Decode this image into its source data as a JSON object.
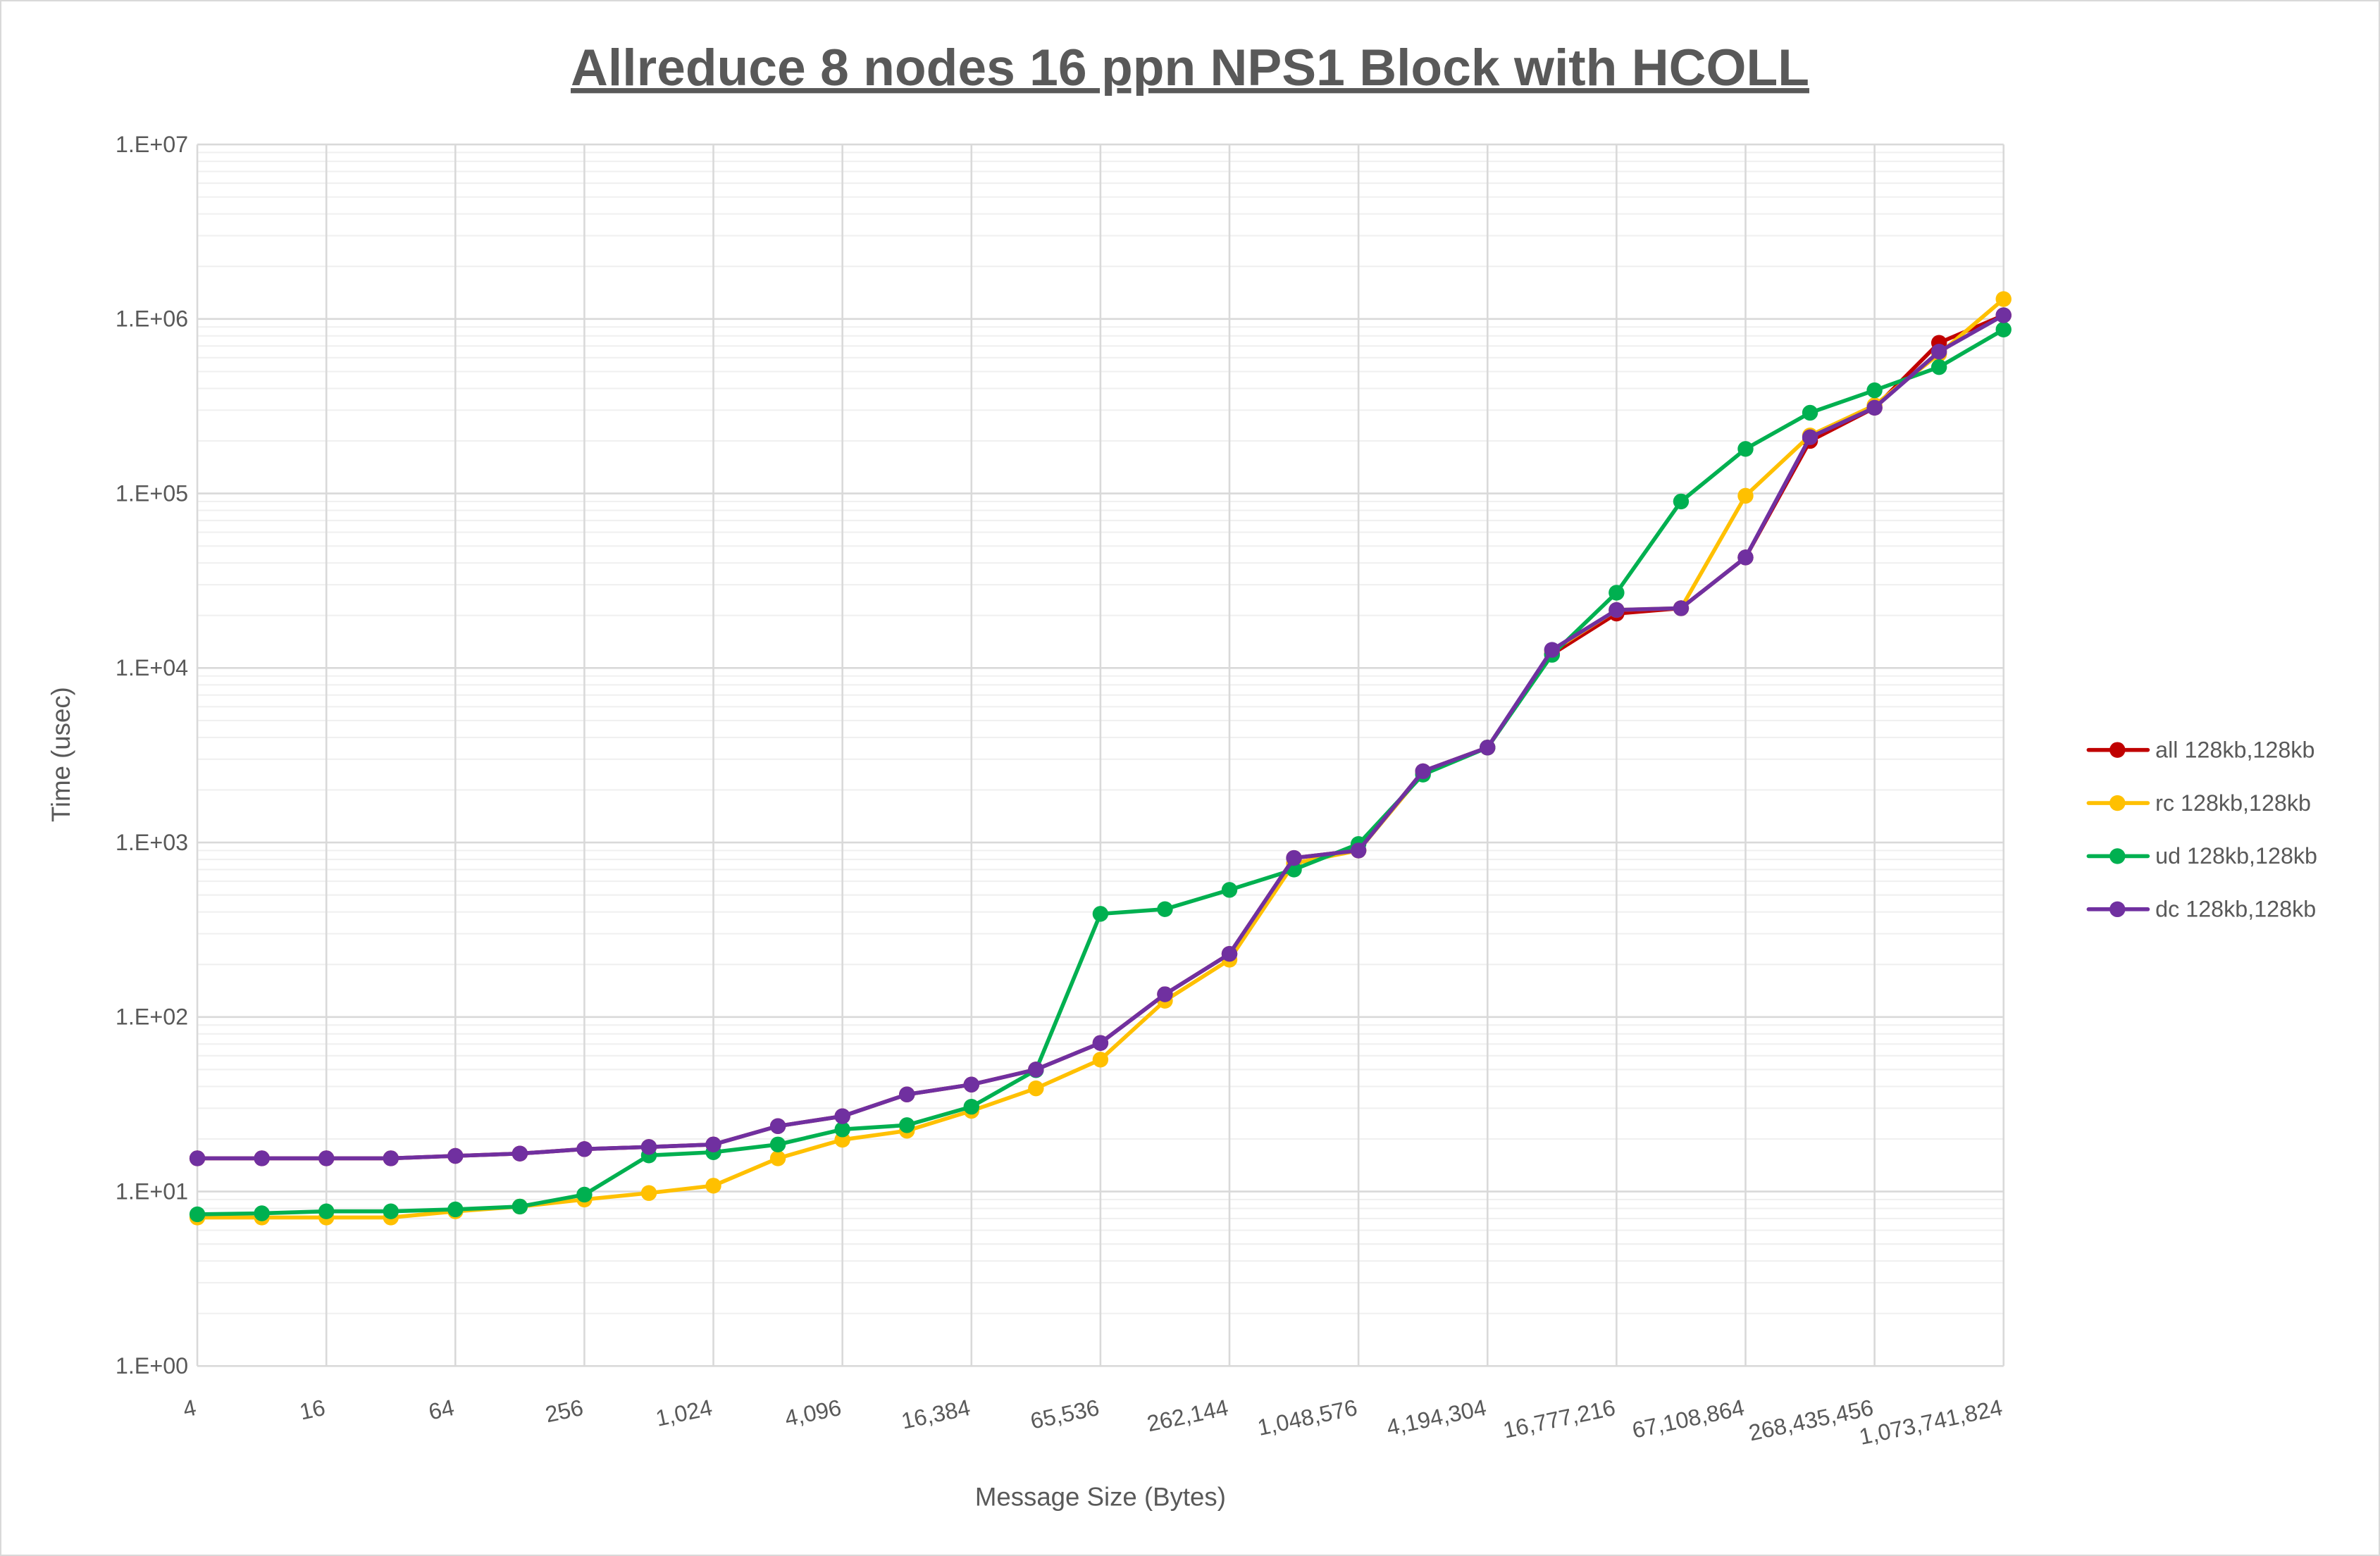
{
  "chart_data": {
    "type": "line",
    "title": "Allreduce 8 nodes 16 ppn NPS1 Block with HCOLL",
    "xlabel": "Message Size (Bytes)",
    "ylabel": "Time (usec)",
    "yscale": "log",
    "ylim": [
      1,
      10000000
    ],
    "y_tick_labels": [
      "1.E+00",
      "1.E+01",
      "1.E+02",
      "1.E+03",
      "1.E+04",
      "1.E+05",
      "1.E+06",
      "1.E+07"
    ],
    "grid": true,
    "legend_position": "right",
    "categories": [
      4,
      8,
      16,
      32,
      64,
      128,
      256,
      512,
      1024,
      2048,
      4096,
      8192,
      16384,
      32768,
      65536,
      131072,
      262144,
      524288,
      1048576,
      2097152,
      4194304,
      8388608,
      16777216,
      33554432,
      67108864,
      134217728,
      268435456,
      536870912,
      1073741824
    ],
    "x_tick_labels": [
      "4",
      "16",
      "64",
      "256",
      "1,024",
      "4,096",
      "16,384",
      "65,536",
      "262,144",
      "1,048,576",
      "4,194,304",
      "16,777,216",
      "67,108,864",
      "268,435,456",
      "1,073,741,824"
    ],
    "series": [
      {
        "name": "all 128kb,128kb",
        "color": "#C00000",
        "values": [
          15.5,
          15.5,
          15.5,
          15.5,
          16,
          16.5,
          17.5,
          18,
          18.6,
          23.7,
          27,
          36,
          41,
          50,
          71,
          135,
          230,
          815,
          900,
          2560,
          3500,
          12000,
          20500,
          22000,
          43000,
          200000,
          310000,
          730000,
          1050000
        ]
      },
      {
        "name": "rc 128kb,128kb",
        "color": "#FFC000",
        "values": [
          7.1,
          7.1,
          7.1,
          7.1,
          7.7,
          8.2,
          9.0,
          9.8,
          10.8,
          15.5,
          19.8,
          22.3,
          29,
          39,
          57,
          124,
          213,
          760,
          900,
          2500,
          3500,
          12500,
          21500,
          22000,
          97000,
          215000,
          320000,
          630000,
          1300000
        ]
      },
      {
        "name": "ud 128kb,128kb",
        "color": "#00B050",
        "values": [
          7.4,
          7.5,
          7.7,
          7.7,
          7.9,
          8.2,
          9.6,
          16.1,
          16.8,
          18.6,
          22.7,
          24,
          30.6,
          49.6,
          390,
          415,
          535,
          700,
          980,
          2450,
          3500,
          11900,
          27000,
          90000,
          180000,
          290000,
          390000,
          530000,
          870000
        ]
      },
      {
        "name": "dc 128kb,128kb",
        "color": "#7030A0",
        "values": [
          15.5,
          15.5,
          15.5,
          15.5,
          16,
          16.5,
          17.5,
          18,
          18.6,
          23.7,
          27,
          36,
          41,
          50,
          71,
          135,
          230,
          815,
          900,
          2560,
          3500,
          12700,
          21500,
          22000,
          43000,
          210000,
          310000,
          650000,
          1050000
        ]
      }
    ]
  }
}
